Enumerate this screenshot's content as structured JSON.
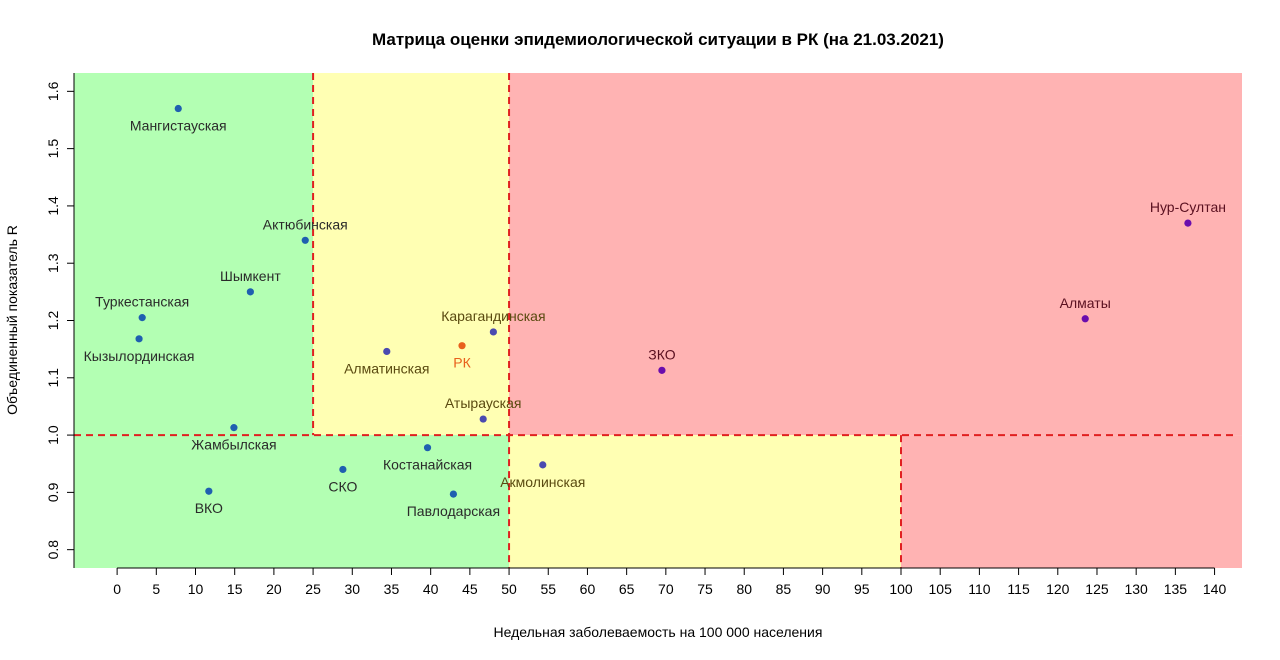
{
  "chart_data": {
    "type": "scatter",
    "title": "Матрица оценки эпидемиологической ситуации в РК (на 21.03.2021)",
    "xlabel": "Недельная заболеваемость на 100 000 населения",
    "ylabel": "Объединенный показатель R",
    "xlim": [
      -5.5,
      143.5
    ],
    "ylim": [
      0.768,
      1.632
    ],
    "x_ticks": [
      0,
      5,
      10,
      15,
      20,
      25,
      30,
      35,
      40,
      45,
      50,
      55,
      60,
      65,
      70,
      75,
      80,
      85,
      90,
      95,
      100,
      105,
      110,
      115,
      120,
      125,
      130,
      135,
      140
    ],
    "y_ticks": [
      0.8,
      0.9,
      1.0,
      1.1,
      1.2,
      1.3,
      1.4,
      1.5,
      1.6
    ],
    "y_tick_labels": [
      "0.8",
      "0.9",
      "1.0",
      "1.1",
      "1.2",
      "1.3",
      "1.4",
      "1.5",
      "1.6"
    ],
    "zones": [
      {
        "x": [
          -5.5,
          25
        ],
        "y": [
          1.0,
          1.632
        ],
        "color": "#b3ffb3"
      },
      {
        "x": [
          25,
          50
        ],
        "y": [
          1.0,
          1.632
        ],
        "color": "#ffffb3"
      },
      {
        "x": [
          50,
          143.5
        ],
        "y": [
          1.0,
          1.632
        ],
        "color": "#ffb3b3"
      },
      {
        "x": [
          -5.5,
          50
        ],
        "y": [
          0.768,
          1.0
        ],
        "color": "#b3ffb3"
      },
      {
        "x": [
          50,
          100
        ],
        "y": [
          0.768,
          1.0
        ],
        "color": "#ffffb3"
      },
      {
        "x": [
          100,
          143.5
        ],
        "y": [
          0.768,
          1.0
        ],
        "color": "#ffb3b3"
      }
    ],
    "threshold_lines": {
      "color": "#e02020",
      "horizontal": {
        "y": 1.0,
        "x_from": -5.5,
        "x_to": 143.5
      },
      "vertical_upper": [
        {
          "x": 25,
          "y_from": 1.0,
          "y_to": 1.632
        },
        {
          "x": 50,
          "y_from": 1.0,
          "y_to": 1.632
        }
      ],
      "vertical_lower": [
        {
          "x": 50,
          "y_from": 0.768,
          "y_to": 1.0
        },
        {
          "x": 100,
          "y_from": 0.768,
          "y_to": 1.0
        }
      ]
    },
    "points": [
      {
        "label": "Мангистауская",
        "x": 7.8,
        "y": 1.57,
        "color": "#1f5fb0",
        "label_color": "#2a2a2a",
        "label_pos": "below"
      },
      {
        "label": "Актюбинская",
        "x": 24.0,
        "y": 1.34,
        "color": "#1f5fb0",
        "label_color": "#2a2a2a",
        "label_pos": "above"
      },
      {
        "label": "Шымкент",
        "x": 17.0,
        "y": 1.25,
        "color": "#1f5fb0",
        "label_color": "#2a2a2a",
        "label_pos": "above"
      },
      {
        "label": "Туркестанская",
        "x": 3.2,
        "y": 1.205,
        "color": "#1f5fb0",
        "label_color": "#2a2a2a",
        "label_pos": "above"
      },
      {
        "label": "Кызылординская",
        "x": 2.8,
        "y": 1.168,
        "color": "#1f5fb0",
        "label_color": "#2a2a2a",
        "label_pos": "below"
      },
      {
        "label": "Жамбылская",
        "x": 14.9,
        "y": 1.013,
        "color": "#1f5fb0",
        "label_color": "#2a2a2a",
        "label_pos": "below"
      },
      {
        "label": "ВКО",
        "x": 11.7,
        "y": 0.902,
        "color": "#1f5fb0",
        "label_color": "#2a2a2a",
        "label_pos": "below"
      },
      {
        "label": "СКО",
        "x": 28.8,
        "y": 0.94,
        "color": "#1f5fb0",
        "label_color": "#2a2a2a",
        "label_pos": "below"
      },
      {
        "label": "Костанайская",
        "x": 39.6,
        "y": 0.978,
        "color": "#1f5fb0",
        "label_color": "#2a2a2a",
        "label_pos": "below"
      },
      {
        "label": "Павлодарская",
        "x": 42.9,
        "y": 0.897,
        "color": "#1f5fb0",
        "label_color": "#2a2a2a",
        "label_pos": "below"
      },
      {
        "label": "Алматинская",
        "x": 34.4,
        "y": 1.146,
        "color": "#4a4ab0",
        "label_color": "#5a4a10",
        "label_pos": "below"
      },
      {
        "label": "Карагандинская",
        "x": 48.0,
        "y": 1.18,
        "color": "#4a4ab0",
        "label_color": "#5a4a10",
        "label_pos": "above"
      },
      {
        "label": "Атырауская",
        "x": 46.7,
        "y": 1.028,
        "color": "#4a4ab0",
        "label_color": "#5a4a10",
        "label_pos": "above"
      },
      {
        "label": "Акмолинская",
        "x": 54.3,
        "y": 0.948,
        "color": "#4a4ab0",
        "label_color": "#5a4a10",
        "label_pos": "below"
      },
      {
        "label": "РК",
        "x": 44.0,
        "y": 1.156,
        "color": "#e8601c",
        "label_color": "#e8601c",
        "label_pos": "below"
      },
      {
        "label": "ЗКО",
        "x": 69.5,
        "y": 1.113,
        "color": "#6a0dad",
        "label_color": "#5a1020",
        "label_pos": "above"
      },
      {
        "label": "Алматы",
        "x": 123.5,
        "y": 1.203,
        "color": "#6a0dad",
        "label_color": "#5a1020",
        "label_pos": "above"
      },
      {
        "label": "Нур-Султан",
        "x": 136.6,
        "y": 1.37,
        "color": "#6a0dad",
        "label_color": "#5a1020",
        "label_pos": "above"
      }
    ]
  }
}
